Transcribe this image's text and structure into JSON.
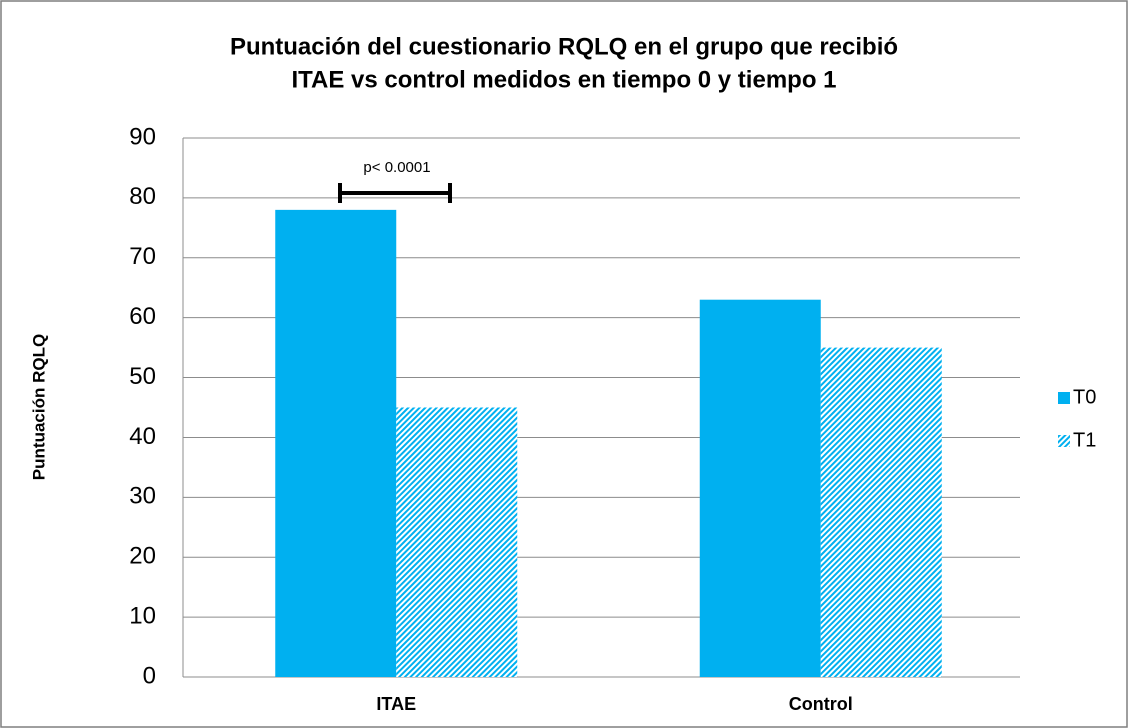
{
  "chart_data": {
    "type": "bar",
    "title": [
      "Puntuación del cuestionario RQLQ en el grupo que recibió",
      "ITAE vs control medidos en tiempo 0 y tiempo 1"
    ],
    "y_label": "Puntuación RQLQ",
    "categories": [
      "ITAE",
      "Control"
    ],
    "series": [
      {
        "name": "T0",
        "color": "#00b0f0",
        "pattern": "solid",
        "values": [
          78,
          63
        ]
      },
      {
        "name": "T1",
        "color": "#00b0f0",
        "pattern": "hatch",
        "values": [
          45,
          55
        ]
      }
    ],
    "ylim": [
      0,
      90
    ],
    "yticks": [
      0,
      10,
      20,
      30,
      40,
      50,
      60,
      70,
      80,
      90
    ],
    "grid": true,
    "legend": "right",
    "annotation": "p< 0.0001"
  }
}
